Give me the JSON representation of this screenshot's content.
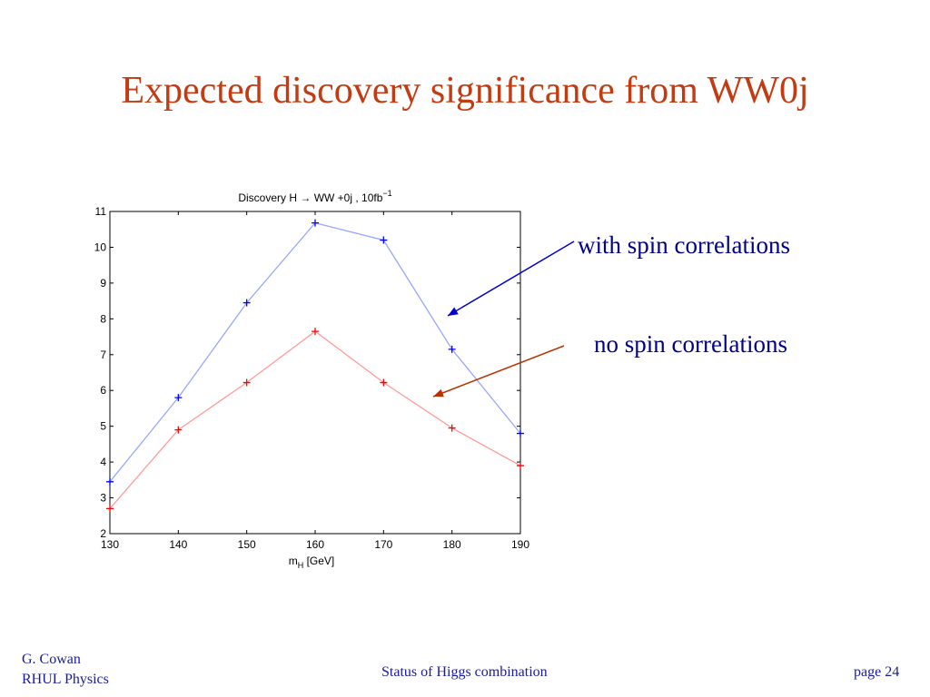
{
  "slide": {
    "title": "Expected discovery significance from WW0j",
    "annotation_with": "with spin correlations",
    "annotation_no": "no spin correlations",
    "footer_author_line1": "G. Cowan",
    "footer_author_line2": "RHUL Physics",
    "footer_center": "Status of Higgs combination",
    "footer_page": "page 24"
  },
  "colors": {
    "title": "#c23b12",
    "series_with": "#9aa6ff",
    "marker_with": "#0000ff",
    "series_no": "#ff9a9a",
    "marker_no": "#ff0000",
    "arrow_with": "#0000cc",
    "arrow_no": "#b83200"
  },
  "chart_data": {
    "type": "line",
    "title_main": "Discovery H → WW +0j , 10fb",
    "title_sup": "−1",
    "xlabel_main": "m",
    "xlabel_sub": "H",
    "xlabel_rest": " [GeV]",
    "ylabel": "",
    "xlim": [
      130,
      190
    ],
    "ylim": [
      2,
      11
    ],
    "xticks": [
      "130",
      "140",
      "150",
      "160",
      "170",
      "180",
      "190"
    ],
    "yticks": [
      "2",
      "3",
      "4",
      "5",
      "6",
      "7",
      "8",
      "9",
      "10",
      "11"
    ],
    "grid": false,
    "x": [
      130,
      140,
      150,
      160,
      170,
      180,
      190
    ],
    "series": [
      {
        "values": [
          3.45,
          5.8,
          8.45,
          10.68,
          10.2,
          7.15,
          4.8
        ]
      },
      {
        "values": [
          2.7,
          4.9,
          6.22,
          7.65,
          6.22,
          4.95,
          3.9
        ]
      }
    ]
  }
}
